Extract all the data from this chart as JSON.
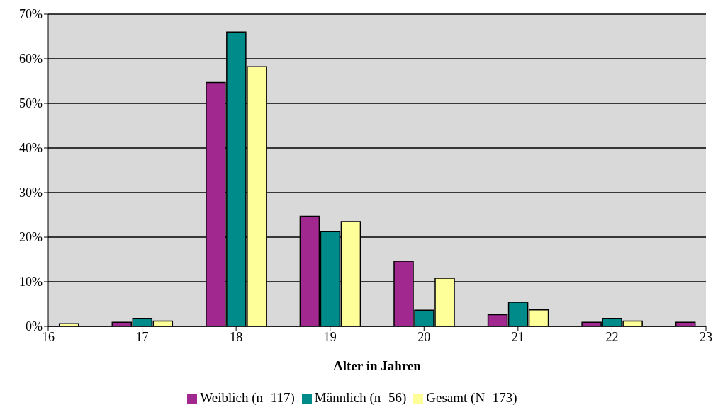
{
  "chart_data": {
    "type": "bar",
    "xlabel": "Alter in Jahren",
    "x": [
      16,
      17,
      18,
      19,
      20,
      21,
      22,
      23
    ],
    "xlim": [
      16,
      23
    ],
    "xticks": [
      16,
      17,
      18,
      19,
      20,
      21,
      22,
      23
    ],
    "ylim": [
      0,
      70
    ],
    "yticks": [
      {
        "value": 0,
        "label": "0%"
      },
      {
        "value": 10,
        "label": "10%"
      },
      {
        "value": 20,
        "label": "20%"
      },
      {
        "value": 30,
        "label": "30%"
      },
      {
        "value": 40,
        "label": "40%"
      },
      {
        "value": 50,
        "label": "50%"
      },
      {
        "value": 60,
        "label": "60%"
      },
      {
        "value": 70,
        "label": "70%"
      }
    ],
    "grid": "y",
    "legend": "bottom",
    "series": [
      {
        "name": "Weiblich (n=117)",
        "color": "#a0288f",
        "values": [
          null,
          0.9,
          54.7,
          24.7,
          14.6,
          2.6,
          0.9,
          0.9
        ]
      },
      {
        "name": "Männlich (n=56)",
        "color": "#008b8b",
        "values": [
          null,
          1.8,
          66.0,
          21.3,
          3.6,
          5.4,
          1.8,
          null
        ]
      },
      {
        "name": "Gesamt (N=173)",
        "color": "#ffff99",
        "values": [
          0.6,
          1.2,
          58.2,
          23.5,
          10.8,
          3.7,
          1.2,
          null
        ]
      }
    ]
  }
}
